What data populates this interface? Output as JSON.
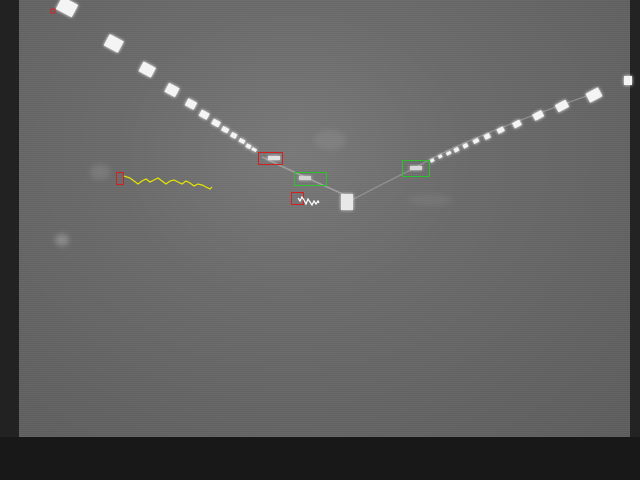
{
  "view": {
    "type": "thermal-camera-feed",
    "palette": "grayscale",
    "colors": {
      "background": "#1a1a1a",
      "frame": "#6a6a6a",
      "runway_lights": "#f2f2f2",
      "box_red": "#d42020",
      "box_green": "#2ec22e",
      "track_yellow": "#e6e600",
      "track_white": "#ffffff"
    }
  },
  "detections": {
    "red_boxes": 4,
    "green_boxes": 2,
    "trajectories": [
      "yellow-track",
      "white-track"
    ]
  }
}
